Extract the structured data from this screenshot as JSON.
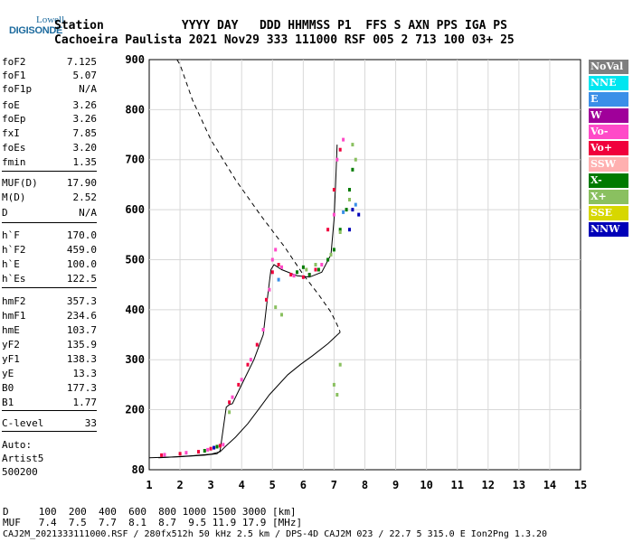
{
  "logo": {
    "top": "Lowell",
    "bottom": "DIGISONDE"
  },
  "header": {
    "line1": "Station           YYYY DAY   DDD HHMMSS P1  FFS S AXN PPS IGA PS",
    "line2": "Cachoeira Paulista 2021 Nov29 333 111000 RSF 005 2 713 100 03+ 25"
  },
  "params": [
    {
      "name": "foF2",
      "value": "7.125"
    },
    {
      "name": "foF1",
      "value": "5.07"
    },
    {
      "name": "foF1p",
      "value": "N/A"
    },
    {
      "name": "foE",
      "value": "3.26"
    },
    {
      "name": "foEp",
      "value": "3.26"
    },
    {
      "name": "fxI",
      "value": "7.85"
    },
    {
      "name": "foEs",
      "value": "3.20"
    },
    {
      "name": "fmin",
      "value": "1.35"
    },
    {
      "name": "MUF(D)",
      "value": "17.90"
    },
    {
      "name": "M(D)",
      "value": "2.52"
    },
    {
      "name": "D",
      "value": "N/A"
    },
    {
      "name": "h`F",
      "value": "170.0"
    },
    {
      "name": "h`F2",
      "value": "459.0"
    },
    {
      "name": "h`E",
      "value": "100.0"
    },
    {
      "name": "h`Es",
      "value": "122.5"
    },
    {
      "name": "hmF2",
      "value": "357.3"
    },
    {
      "name": "hmF1",
      "value": "234.6"
    },
    {
      "name": "hmE",
      "value": "103.7"
    },
    {
      "name": "yF2",
      "value": "135.9"
    },
    {
      "name": "yF1",
      "value": "138.3"
    },
    {
      "name": "yE",
      "value": "13.3"
    },
    {
      "name": "B0",
      "value": "177.3"
    },
    {
      "name": "B1",
      "value": "1.77"
    },
    {
      "name": "C-level",
      "value": "33"
    }
  ],
  "auto": {
    "line1": "Auto:",
    "line2": "Artist5",
    "line3": "500200"
  },
  "footer": {
    "d_row": "D     100  200  400  600  800 1000 1500 3000 [km]",
    "muf_row": "MUF   7.4  7.5  7.7  8.1  8.7  9.5 11.9 17.9 [MHz]",
    "info": "CAJ2M_2021333111000.RSF / 280fx512h 50 kHz 2.5 km / DPS-4D CAJ2M 023 / 22.7 5 315.0 E Ion2Png 1.3.20"
  },
  "legend": [
    {
      "label": "NoVal",
      "color": "#7f7f7f"
    },
    {
      "label": "NNE",
      "color": "#00e6f0"
    },
    {
      "label": "E",
      "color": "#3a8fe8"
    },
    {
      "label": "W",
      "color": "#a0009a"
    },
    {
      "label": "Vo-",
      "color": "#ff4ac8"
    },
    {
      "label": "Vo+",
      "color": "#f0003c"
    },
    {
      "label": "SSW",
      "color": "#ffb0b0"
    },
    {
      "label": "X-",
      "color": "#007a00"
    },
    {
      "label": "X+",
      "color": "#8ac060"
    },
    {
      "label": "SSE",
      "color": "#d7d700"
    },
    {
      "label": "NNW",
      "color": "#0000b8"
    }
  ],
  "chart_data": {
    "type": "scatter",
    "xlabel": "",
    "ylabel": "",
    "xlim": [
      1,
      15
    ],
    "ylim": [
      80,
      900
    ],
    "x_ticks": [
      1,
      2,
      3,
      4,
      5,
      6,
      7,
      8,
      9,
      10,
      11,
      12,
      13,
      14,
      15
    ],
    "y_ticks": [
      80,
      200,
      300,
      400,
      500,
      600,
      700,
      800,
      900
    ],
    "grid": true,
    "series": [
      {
        "name": "Vo+",
        "color": "#f0003c",
        "points": [
          [
            1.4,
            109
          ],
          [
            2.0,
            112
          ],
          [
            2.6,
            116
          ],
          [
            3.0,
            122
          ],
          [
            3.3,
            128
          ],
          [
            3.6,
            215
          ],
          [
            3.9,
            250
          ],
          [
            4.2,
            290
          ],
          [
            4.5,
            330
          ],
          [
            4.8,
            420
          ],
          [
            5.0,
            475
          ],
          [
            5.2,
            490
          ],
          [
            5.6,
            470
          ],
          [
            6.0,
            465
          ],
          [
            6.4,
            480
          ],
          [
            6.8,
            560
          ],
          [
            7.0,
            640
          ],
          [
            7.2,
            720
          ]
        ]
      },
      {
        "name": "Vo-",
        "color": "#ff4ac8",
        "points": [
          [
            1.5,
            110
          ],
          [
            2.2,
            114
          ],
          [
            2.9,
            120
          ],
          [
            3.4,
            130
          ],
          [
            3.7,
            225
          ],
          [
            4.0,
            260
          ],
          [
            4.3,
            300
          ],
          [
            4.7,
            360
          ],
          [
            4.9,
            440
          ],
          [
            5.0,
            500
          ],
          [
            5.1,
            520
          ],
          [
            5.3,
            485
          ],
          [
            5.7,
            468
          ],
          [
            6.2,
            470
          ],
          [
            6.6,
            490
          ],
          [
            7.0,
            590
          ],
          [
            7.1,
            700
          ],
          [
            7.3,
            740
          ]
        ]
      },
      {
        "name": "X-",
        "color": "#007a00",
        "points": [
          [
            2.8,
            118
          ],
          [
            3.2,
            126
          ],
          [
            5.8,
            475
          ],
          [
            6.0,
            485
          ],
          [
            6.2,
            470
          ],
          [
            6.5,
            480
          ],
          [
            6.8,
            500
          ],
          [
            7.0,
            520
          ],
          [
            7.2,
            560
          ],
          [
            7.4,
            600
          ],
          [
            7.5,
            640
          ],
          [
            7.6,
            680
          ]
        ]
      },
      {
        "name": "X+",
        "color": "#8ac060",
        "points": [
          [
            3.6,
            195
          ],
          [
            5.1,
            405
          ],
          [
            5.3,
            390
          ],
          [
            6.1,
            480
          ],
          [
            6.4,
            490
          ],
          [
            6.9,
            510
          ],
          [
            7.2,
            555
          ],
          [
            7.5,
            620
          ],
          [
            7.7,
            700
          ],
          [
            7.6,
            730
          ],
          [
            7.2,
            290
          ],
          [
            7.0,
            250
          ],
          [
            7.1,
            230
          ]
        ]
      },
      {
        "name": "NNW",
        "color": "#0000b8",
        "points": [
          [
            7.5,
            560
          ],
          [
            7.6,
            600
          ],
          [
            7.8,
            590
          ],
          [
            3.1,
            124
          ]
        ]
      },
      {
        "name": "E",
        "color": "#3a8fe8",
        "points": [
          [
            5.2,
            460
          ],
          [
            7.3,
            595
          ],
          [
            7.7,
            610
          ]
        ]
      }
    ],
    "lines": [
      {
        "name": "ionogram-trace",
        "style": "solid",
        "points": [
          [
            1.0,
            104
          ],
          [
            2.0,
            106
          ],
          [
            2.8,
            109
          ],
          [
            3.2,
            112
          ],
          [
            3.3,
            118
          ],
          [
            3.5,
            205
          ],
          [
            3.6,
            210
          ],
          [
            3.7,
            212
          ],
          [
            4.0,
            250
          ],
          [
            4.4,
            300
          ],
          [
            4.7,
            350
          ],
          [
            4.85,
            430
          ],
          [
            4.95,
            480
          ],
          [
            5.05,
            490
          ],
          [
            5.3,
            480
          ],
          [
            5.8,
            468
          ],
          [
            6.2,
            465
          ],
          [
            6.6,
            475
          ],
          [
            6.9,
            510
          ],
          [
            7.0,
            580
          ],
          [
            7.05,
            650
          ],
          [
            7.1,
            730
          ]
        ]
      },
      {
        "name": "profile-upper",
        "style": "dashed",
        "points": [
          [
            1.9,
            900
          ],
          [
            2.0,
            890
          ],
          [
            2.4,
            820
          ],
          [
            3.0,
            740
          ],
          [
            3.8,
            660
          ],
          [
            4.6,
            590
          ],
          [
            5.4,
            525
          ],
          [
            6.0,
            470
          ],
          [
            6.5,
            430
          ],
          [
            6.9,
            395
          ],
          [
            7.1,
            370
          ],
          [
            7.2,
            355
          ]
        ]
      },
      {
        "name": "profile-lower",
        "style": "solid",
        "points": [
          [
            7.2,
            355
          ],
          [
            6.8,
            332
          ],
          [
            6.3,
            308
          ],
          [
            5.9,
            290
          ],
          [
            5.5,
            270
          ],
          [
            5.2,
            250
          ],
          [
            4.9,
            230
          ],
          [
            4.6,
            205
          ],
          [
            4.2,
            172
          ],
          [
            3.8,
            145
          ],
          [
            3.5,
            128
          ],
          [
            3.3,
            116
          ],
          [
            3.0,
            111
          ],
          [
            2.4,
            108
          ],
          [
            1.6,
            105
          ],
          [
            1.3,
            104
          ]
        ]
      }
    ]
  }
}
